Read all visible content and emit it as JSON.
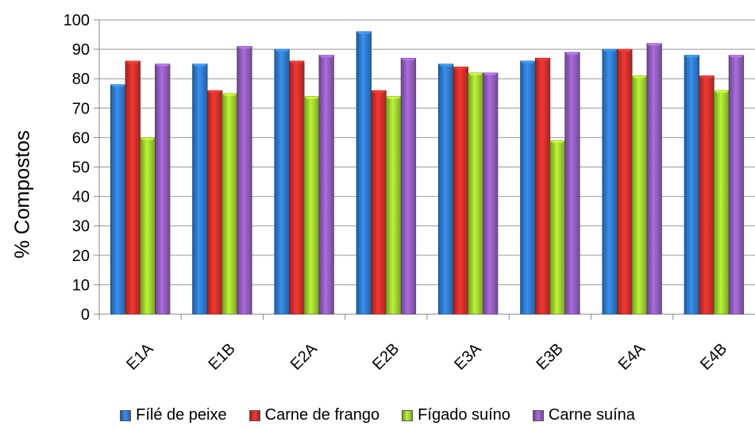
{
  "chart_data": {
    "type": "bar",
    "title": "",
    "xlabel": "",
    "ylabel": "% Compostos",
    "ylim": [
      0,
      100
    ],
    "yticks": [
      0,
      10,
      20,
      30,
      40,
      50,
      60,
      70,
      80,
      90,
      100
    ],
    "grid": true,
    "legend_position": "bottom",
    "categories": [
      "E1A",
      "E1B",
      "E2A",
      "E2B",
      "E3A",
      "E3B",
      "E4A",
      "E4B"
    ],
    "series": [
      {
        "name": "Fílé de peixe",
        "color": "#2f78c8",
        "values": [
          78,
          85,
          90,
          96,
          85,
          86,
          90,
          88
        ]
      },
      {
        "name": "Carne de frango",
        "color": "#cc2e2a",
        "values": [
          86,
          76,
          86,
          76,
          84,
          87,
          90,
          81
        ]
      },
      {
        "name": "Fígado suíno",
        "color": "#9ccc2e",
        "values": [
          60,
          75,
          74,
          74,
          82,
          59,
          81,
          76
        ]
      },
      {
        "name": "Carne suína",
        "color": "#8e5bb8",
        "values": [
          85,
          91,
          88,
          87,
          82,
          89,
          92,
          88
        ]
      }
    ]
  }
}
